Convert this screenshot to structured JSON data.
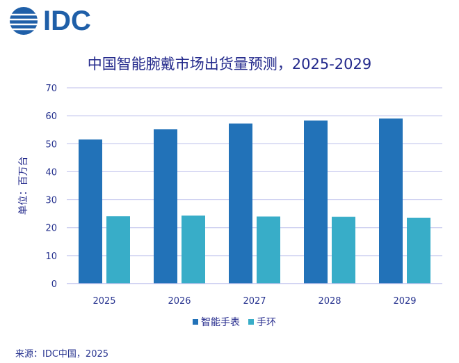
{
  "logo": {
    "text": "IDC"
  },
  "source": "来源：IDC中国，2025",
  "chart_data": {
    "type": "bar",
    "title": "中国智能腕戴市场出货量预测，2025-2029",
    "xlabel": "",
    "ylabel": "单位：百万台",
    "ylim": [
      0,
      70
    ],
    "yticks": [
      0,
      10,
      20,
      30,
      40,
      50,
      60,
      70
    ],
    "grid": true,
    "legend_position": "bottom",
    "categories": [
      "2025",
      "2026",
      "2027",
      "2028",
      "2029"
    ],
    "series": [
      {
        "name": "智能手表",
        "color": "#2272b8",
        "values": [
          51.5,
          55.2,
          57.2,
          58.3,
          59.0
        ]
      },
      {
        "name": "手环",
        "color": "#38adc8",
        "values": [
          24.1,
          24.3,
          24.0,
          23.9,
          23.5
        ]
      }
    ]
  }
}
